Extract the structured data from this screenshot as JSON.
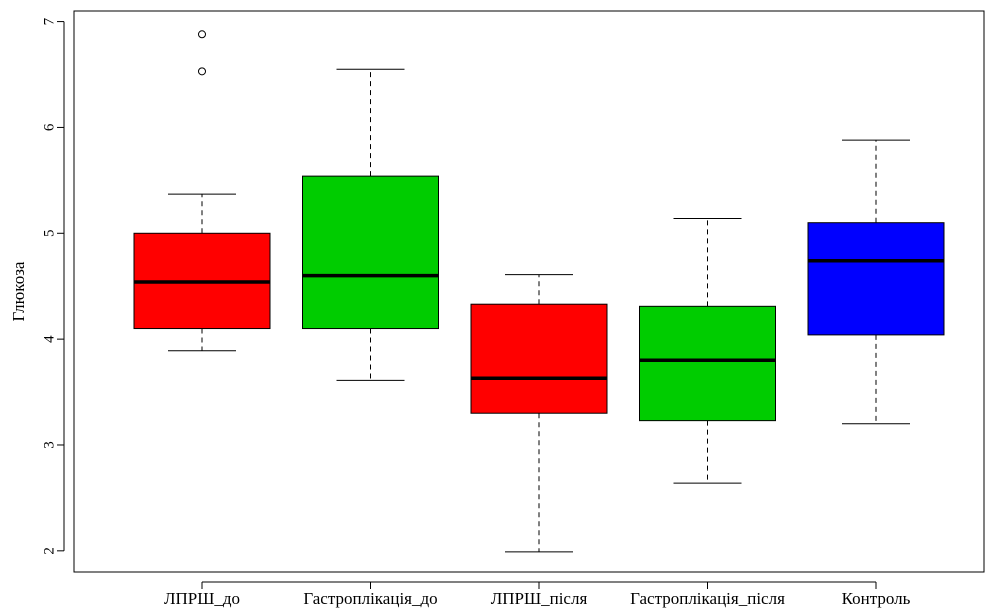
{
  "chart_data": {
    "type": "boxplot",
    "ylabel": "Глюкоза",
    "ylim": [
      1.8,
      7.1
    ],
    "y_ticks": [
      2,
      3,
      4,
      5,
      6,
      7
    ],
    "y_tick_labels": [
      "2",
      "3",
      "4",
      "5",
      "6",
      "7"
    ],
    "categories": [
      "ЛПРШ_до",
      "Гастроплікація_до",
      "ЛПРШ_після",
      "Гастроплікація_після",
      "Контроль"
    ],
    "boxes": [
      {
        "category": "ЛПРШ_до",
        "color": "#ff0000",
        "whisker_low": 3.89,
        "q1": 4.1,
        "median": 4.54,
        "q3": 5.0,
        "whisker_high": 5.37,
        "outliers": [
          6.53,
          6.88
        ]
      },
      {
        "category": "Гастроплікація_до",
        "color": "#00cc00",
        "whisker_low": 3.61,
        "q1": 4.1,
        "median": 4.6,
        "q3": 5.54,
        "whisker_high": 6.55,
        "outliers": []
      },
      {
        "category": "ЛПРШ_після",
        "color": "#ff0000",
        "whisker_low": 1.99,
        "q1": 3.3,
        "median": 3.63,
        "q3": 4.33,
        "whisker_high": 4.61,
        "outliers": []
      },
      {
        "category": "Гастроплікація_після",
        "color": "#00cc00",
        "whisker_low": 2.64,
        "q1": 3.23,
        "median": 3.8,
        "q3": 4.31,
        "whisker_high": 5.14,
        "outliers": []
      },
      {
        "category": "Контроль",
        "color": "#0000ff",
        "whisker_low": 3.2,
        "q1": 4.04,
        "median": 4.74,
        "q3": 5.1,
        "whisker_high": 5.88,
        "outliers": []
      }
    ],
    "grid": false,
    "legend": "none"
  }
}
